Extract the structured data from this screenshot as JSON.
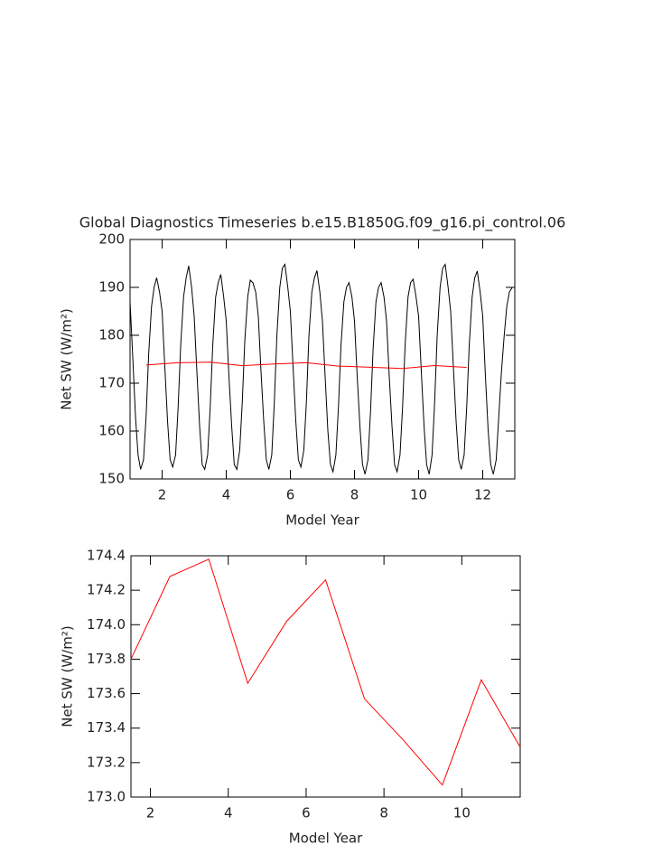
{
  "chart_data": [
    {
      "type": "line",
      "title": "Global Diagnostics Timeseries b.e15.B1850G.f09_g16.pi_control.06",
      "x_label": "Model Year",
      "y_label": "Net SW (W/m²)",
      "xlim": [
        1,
        13
      ],
      "xticks": [
        2,
        4,
        6,
        8,
        10,
        12
      ],
      "ylim": [
        150,
        200
      ],
      "yticks": [
        150,
        160,
        170,
        180,
        190,
        200
      ],
      "series": [
        {
          "color": "#000000",
          "x": [
            1.0,
            1.08,
            1.17,
            1.25,
            1.33,
            1.42,
            1.5,
            1.58,
            1.67,
            1.75,
            1.83,
            1.92,
            2.0,
            2.08,
            2.17,
            2.25,
            2.33,
            2.42,
            2.5,
            2.58,
            2.67,
            2.75,
            2.83,
            2.92,
            3.0,
            3.08,
            3.17,
            3.25,
            3.33,
            3.42,
            3.5,
            3.58,
            3.67,
            3.75,
            3.83,
            3.92,
            4.0,
            4.08,
            4.17,
            4.25,
            4.33,
            4.42,
            4.5,
            4.58,
            4.67,
            4.75,
            4.83,
            4.92,
            5.0,
            5.08,
            5.17,
            5.25,
            5.33,
            5.42,
            5.5,
            5.58,
            5.67,
            5.75,
            5.83,
            5.92,
            6.0,
            6.08,
            6.17,
            6.25,
            6.33,
            6.42,
            6.5,
            6.58,
            6.67,
            6.75,
            6.83,
            6.92,
            7.0,
            7.08,
            7.17,
            7.25,
            7.33,
            7.42,
            7.5,
            7.58,
            7.67,
            7.75,
            7.83,
            7.92,
            8.0,
            8.08,
            8.17,
            8.25,
            8.33,
            8.42,
            8.5,
            8.58,
            8.67,
            8.75,
            8.83,
            8.92,
            9.0,
            9.08,
            9.17,
            9.25,
            9.33,
            9.42,
            9.5,
            9.58,
            9.67,
            9.75,
            9.83,
            9.92,
            10.0,
            10.08,
            10.17,
            10.25,
            10.33,
            10.42,
            10.5,
            10.58,
            10.67,
            10.75,
            10.83,
            10.92,
            11.0,
            11.08,
            11.17,
            11.25,
            11.33,
            11.42,
            11.5,
            11.58,
            11.67,
            11.75,
            11.83,
            11.92,
            12.0,
            12.08,
            12.17,
            12.25,
            12.33,
            12.42,
            12.5,
            12.58,
            12.67,
            12.75,
            12.83,
            12.92
          ],
          "values": [
            187,
            176,
            163,
            155,
            152,
            154,
            163,
            176,
            186,
            190,
            192,
            189,
            185,
            174,
            162,
            154,
            152.5,
            155,
            165,
            178,
            188,
            192,
            194.5,
            190,
            184,
            173,
            161,
            153,
            152,
            155,
            165,
            178,
            188,
            191,
            192.7,
            188,
            183,
            172,
            161,
            153,
            152,
            156,
            166,
            179,
            188,
            191.5,
            191,
            189,
            184,
            173,
            162,
            154,
            152,
            155,
            166,
            180,
            190,
            194,
            194.8,
            190,
            185,
            174,
            162,
            154,
            152.5,
            156,
            166,
            180,
            189,
            192,
            193.5,
            189,
            183,
            172,
            160,
            153,
            151.5,
            155,
            165,
            178,
            187,
            190,
            191,
            188,
            183,
            172,
            161,
            153,
            151,
            154,
            164,
            177,
            187,
            190,
            191,
            188,
            183,
            172,
            161,
            153,
            151.5,
            155,
            165,
            178,
            188,
            191,
            191.7,
            188,
            184,
            173,
            161,
            153,
            151,
            155,
            166,
            180,
            190,
            194,
            194.8,
            190,
            185,
            174,
            162,
            154,
            152,
            155,
            165,
            178,
            188,
            192,
            193.4,
            189,
            184,
            172,
            160,
            153,
            151,
            154,
            163,
            172,
            180,
            186,
            189,
            190
          ]
        },
        {
          "color": "#ff0000",
          "x": [
            1.5,
            2.5,
            3.5,
            4.5,
            5.5,
            6.5,
            7.5,
            8.5,
            9.5,
            10.5,
            11.5
          ],
          "values": [
            173.8,
            174.28,
            174.38,
            173.66,
            174.02,
            174.26,
            173.57,
            173.33,
            173.07,
            173.68,
            173.29
          ]
        }
      ]
    },
    {
      "type": "line",
      "x_label": "Model Year",
      "y_label": "Net SW (W/m²)",
      "xlim": [
        1.5,
        11.5
      ],
      "xticks": [
        2,
        4,
        6,
        8,
        10
      ],
      "ylim": [
        173.0,
        174.4
      ],
      "yticks": [
        {
          "value": 173.0,
          "label": "173.0"
        },
        173.2,
        173.4,
        173.6,
        173.8,
        {
          "value": 174.0,
          "label": "174.0"
        },
        174.2,
        174.4
      ],
      "series": [
        {
          "color": "#ff0000",
          "x": [
            1.5,
            2.5,
            3.5,
            4.5,
            5.5,
            6.5,
            7.5,
            8.5,
            9.5,
            10.5,
            11.5
          ],
          "values": [
            173.8,
            174.28,
            174.38,
            173.66,
            174.02,
            174.26,
            173.57,
            173.33,
            173.07,
            173.68,
            173.29
          ]
        }
      ]
    }
  ]
}
